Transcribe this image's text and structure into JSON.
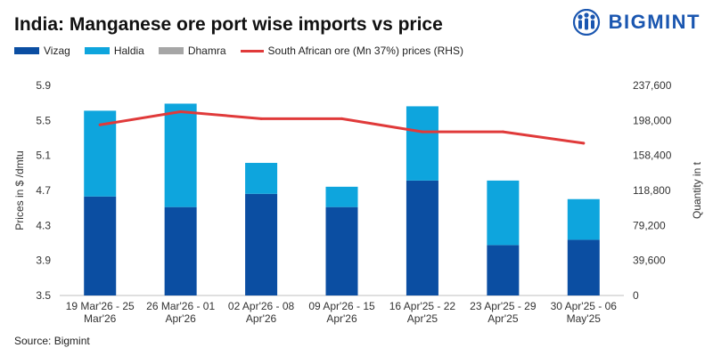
{
  "title": "India: Manganese ore port wise imports vs price",
  "brand": {
    "name": "BIGMINT",
    "logo_icon": "bigmint-people-logo-icon",
    "color": "#1a56b0"
  },
  "source": "Source: Bigmint",
  "colors": {
    "vizag": "#0b4ea2",
    "haldia": "#0ea5dd",
    "dhamra": "#a6a6a6",
    "price": "#e03a3a"
  },
  "legend": [
    {
      "label": "Vizag",
      "kind": "bar",
      "color": "#0b4ea2"
    },
    {
      "label": "Haldia",
      "kind": "bar",
      "color": "#0ea5dd"
    },
    {
      "label": "Dhamra",
      "kind": "bar",
      "color": "#a6a6a6"
    },
    {
      "label": "South African ore (Mn 37%) prices (RHS)",
      "kind": "line",
      "color": "#e03a3a"
    }
  ],
  "chart_data": {
    "type": "bar",
    "stacked": true,
    "categories": [
      [
        "19 Mar'26 - 25",
        "Mar'26"
      ],
      [
        "26 Mar'26 - 01",
        "Apr'26"
      ],
      [
        "02 Apr'26 - 08",
        "Apr'26"
      ],
      [
        "09 Apr'26 - 15",
        "Apr'26"
      ],
      [
        "16 Apr'25 - 22",
        "Apr'25"
      ],
      [
        "23 Apr'25 - 29",
        "Apr'25"
      ],
      [
        "30 Apr'25 - 06",
        "May'25"
      ]
    ],
    "series": [
      {
        "name": "Vizag",
        "type": "bar",
        "axis": "right",
        "values": [
          112000,
          100000,
          115000,
          100000,
          130000,
          57000,
          63000
        ]
      },
      {
        "name": "Haldia",
        "type": "bar",
        "axis": "right",
        "values": [
          97000,
          117000,
          35000,
          23000,
          84000,
          73000,
          46000
        ]
      },
      {
        "name": "Dhamra",
        "type": "bar",
        "axis": "right",
        "values": [
          0,
          0,
          0,
          0,
          0,
          0,
          0
        ]
      },
      {
        "name": "South African ore (Mn 37%) prices (RHS)",
        "type": "line",
        "axis": "left",
        "values": [
          5.45,
          5.6,
          5.52,
          5.52,
          5.37,
          5.37,
          5.24
        ]
      }
    ],
    "ylabel": "Prices in $ /dmtu",
    "y2label": "Quantity in t",
    "ylim": [
      3.5,
      5.9
    ],
    "yticks": [
      3.5,
      3.9,
      4.3,
      4.7,
      5.1,
      5.5,
      5.9
    ],
    "y2lim": [
      0,
      237600
    ],
    "y2ticks": [
      0,
      39600,
      79200,
      118800,
      158400,
      198000,
      237600
    ],
    "y2tick_labels": [
      "0",
      "39,600",
      "79,200",
      "118,800",
      "158,400",
      "198,000",
      "237,600"
    ],
    "grid": false
  }
}
